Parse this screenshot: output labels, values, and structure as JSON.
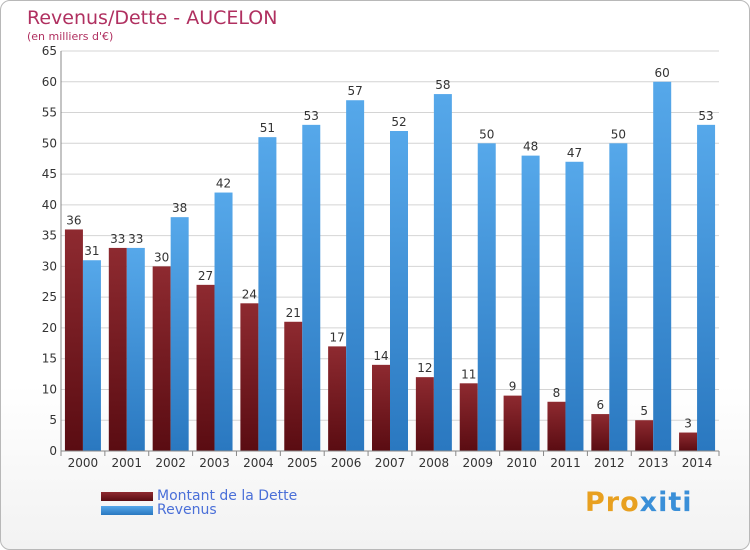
{
  "title": "Revenus/Dette - AUCELON",
  "subtitle": "(en milliers d'€)",
  "colors": {
    "debt": "#7a1e24",
    "revenue": "#3c93d8",
    "title": "#b03060",
    "legend_text": "#4a6fd8"
  },
  "logo_text": "Proxiti",
  "chart_data": {
    "type": "bar",
    "title": "Revenus/Dette - AUCELON",
    "subtitle": "(en milliers d'€)",
    "categories": [
      "2000",
      "2001",
      "2002",
      "2003",
      "2004",
      "2005",
      "2006",
      "2007",
      "2008",
      "2009",
      "2010",
      "2011",
      "2012",
      "2013",
      "2014"
    ],
    "series": [
      {
        "name": "Montant de la Dette",
        "values": [
          36,
          33,
          30,
          27,
          24,
          21,
          17,
          14,
          12,
          11,
          9,
          8,
          6,
          5,
          3
        ]
      },
      {
        "name": "Revenus",
        "values": [
          31,
          33,
          38,
          42,
          51,
          53,
          57,
          52,
          58,
          50,
          48,
          47,
          50,
          60,
          53
        ]
      }
    ],
    "yticks": [
      0,
      5,
      10,
      15,
      20,
      25,
      30,
      35,
      40,
      45,
      50,
      55,
      60,
      65
    ],
    "ylim": [
      0,
      65
    ],
    "grid": true,
    "legend_position": "bottom-left"
  }
}
